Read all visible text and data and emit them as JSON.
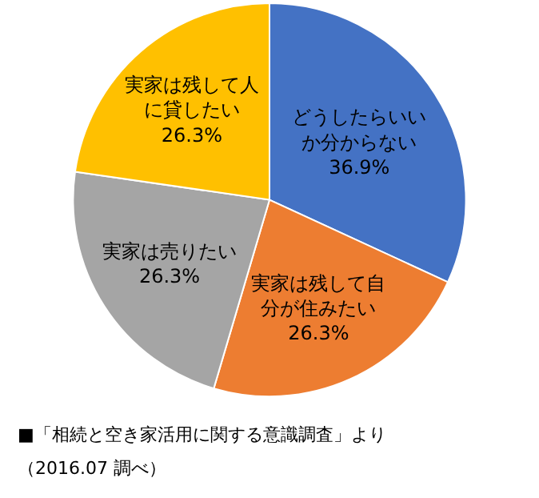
{
  "chart_data": {
    "type": "pie",
    "categories": [
      "どうしたらいいか分からない",
      "実家は残して自分が住みたい",
      "実家は売りたい",
      "実家は残して人に貸したい"
    ],
    "values": [
      36.9,
      26.3,
      26.3,
      26.3
    ],
    "value_labels": [
      "36.9%",
      "26.3%",
      "26.3%",
      "26.3%"
    ],
    "colors": [
      "#4472c4",
      "#ed7d31",
      "#a5a5a5",
      "#ffc000"
    ],
    "legend": false,
    "annotations": [
      "■「相続と空き家活用に関する意識調査」より",
      "（2016.07 調べ）"
    ]
  }
}
